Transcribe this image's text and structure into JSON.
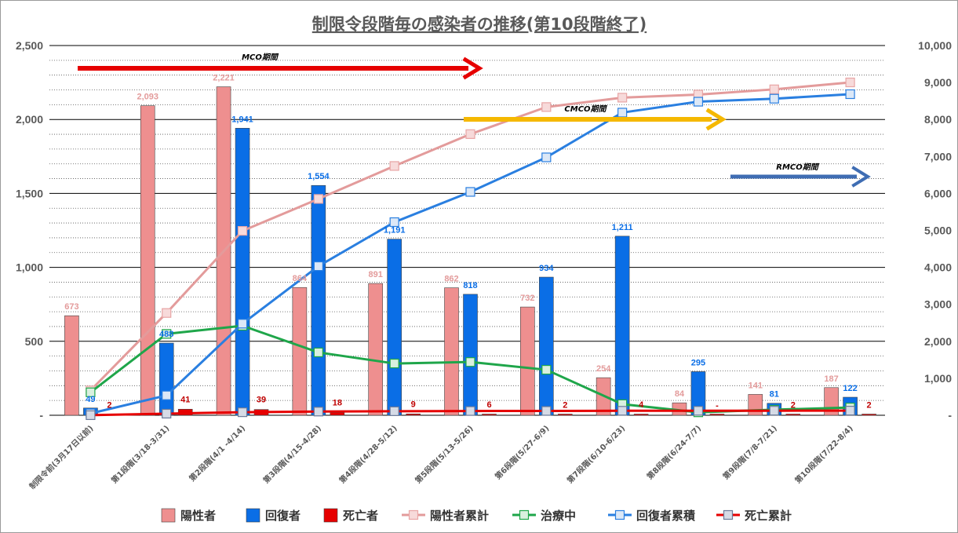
{
  "chart_data": {
    "type": "bar",
    "title": "制限令段階毎の感染者の推移(第10段階終了)",
    "categories": [
      "制限令前(3月17日以前)",
      "第1段階(3/18-3/31)",
      "第2段階(4/1 -4/14)",
      "第3段階(4/15-4/28)",
      "第4段階(4/28-5/12)",
      "第5段階(5/13-5/26)",
      "第6段階(5/27-6/9)",
      "第7段階(6/10-6/23)",
      "第8段階(6/24-7/7)",
      "第9段階(7/8-7/21)",
      "第10段階(7/22-8/4)"
    ],
    "left_axis": {
      "ylim": [
        0,
        2500
      ],
      "ticks": [
        "-",
        "500",
        "1,000",
        "1,500",
        "2,000",
        "2,500"
      ]
    },
    "right_axis": {
      "ylim": [
        0,
        10000
      ],
      "ticks": [
        "-",
        "1,000",
        "2,000",
        "3,000",
        "4,000",
        "5,000",
        "6,000",
        "7,000",
        "8,000",
        "9,000",
        "10,000"
      ]
    },
    "bar_series": [
      {
        "name": "陽性者",
        "color": "#ee8f8f",
        "values": [
          673,
          2093,
          2221,
          864,
          891,
          862,
          732,
          254,
          84,
          141,
          187
        ],
        "labels": [
          "673",
          "2,093",
          "2,221",
          "864",
          "891",
          "862",
          "732",
          "254",
          "84",
          "141",
          "187"
        ]
      },
      {
        "name": "回復者",
        "color": "#0a6ee6",
        "values": [
          49,
          488,
          1941,
          1554,
          1191,
          818,
          934,
          1211,
          295,
          81,
          122
        ],
        "labels": [
          "49",
          "488",
          "1,941",
          "1,554",
          "1,191",
          "818",
          "934",
          "1,211",
          "295",
          "81",
          "122"
        ]
      },
      {
        "name": "死亡者",
        "color": "#e60000",
        "values": [
          2,
          41,
          39,
          18,
          9,
          6,
          2,
          4,
          0,
          2,
          2
        ],
        "labels": [
          "2",
          "41",
          "39",
          "18",
          "9",
          "6",
          "2",
          "4",
          "-",
          "2",
          "2"
        ]
      }
    ],
    "line_series": [
      {
        "name": "陽性者累計",
        "axis": "right",
        "color": "#e39b9b",
        "values": [
          673,
          2766,
          4987,
          5851,
          6742,
          7604,
          8336,
          8590,
          8674,
          8815,
          9002
        ]
      },
      {
        "name": "治療中",
        "axis": "right",
        "color": "#1fa64a",
        "values": [
          620,
          2200,
          2420,
          1700,
          1400,
          1440,
          1230,
          300,
          80,
          150,
          210
        ]
      },
      {
        "name": "回復者累積",
        "axis": "right",
        "color": "#2a7fe0",
        "values": [
          49,
          537,
          2478,
          4032,
          5223,
          6041,
          6975,
          8186,
          8481,
          8562,
          8684
        ]
      },
      {
        "name": "死亡累計",
        "axis": "right",
        "color": "#e60000",
        "values": [
          2,
          43,
          82,
          100,
          109,
          115,
          117,
          121,
          121,
          123,
          125
        ]
      }
    ],
    "annotations": [
      {
        "text": "MCO期間",
        "color": "#e60000"
      },
      {
        "text": "CMCO期間",
        "color": "#f5b800"
      },
      {
        "text": "RMCO期間",
        "color": "#3f6db3"
      }
    ],
    "legend": {
      "position": "bottom"
    },
    "grid": true
  }
}
